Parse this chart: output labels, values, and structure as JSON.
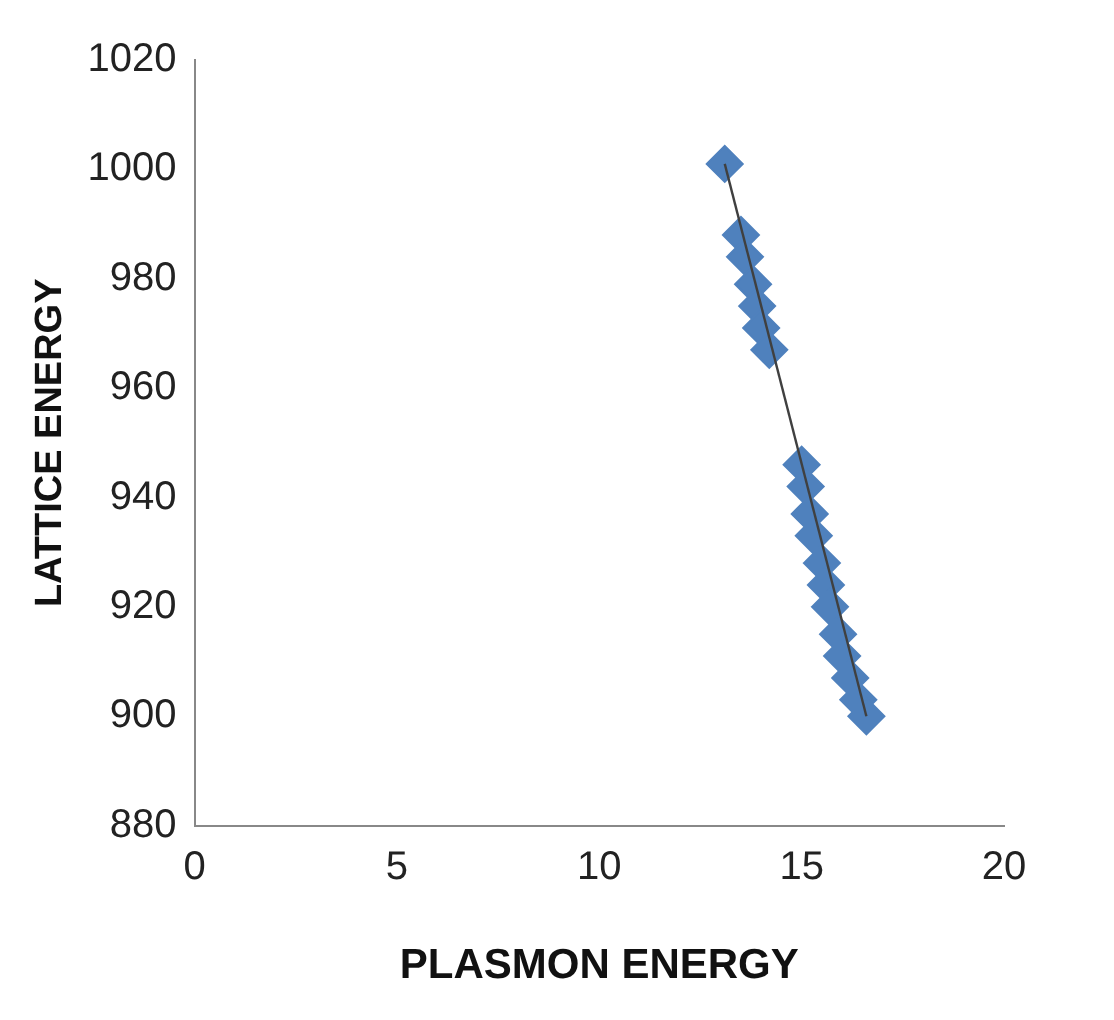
{
  "chart_data": {
    "type": "scatter",
    "xlabel": "PLASMON ENERGY",
    "ylabel": "LATTICE ENERGY",
    "marker": "diamond",
    "grid": false,
    "legend": false,
    "xlim": [
      0,
      20
    ],
    "xticks": [
      0,
      5,
      10,
      15,
      20
    ],
    "ylim": [
      880,
      1020
    ],
    "yticks": [
      880,
      900,
      920,
      940,
      960,
      980,
      1000,
      1020
    ],
    "series": [
      {
        "color": "#4f81bd",
        "x": [
          13.1,
          13.5,
          13.6,
          13.8,
          13.9,
          14.0,
          14.2,
          15.0,
          15.1,
          15.2,
          15.3,
          15.5,
          15.6,
          15.7,
          15.9,
          16.0,
          16.2,
          16.4,
          16.6
        ],
        "values": [
          1001,
          988,
          984,
          979,
          975,
          971,
          967,
          946,
          942,
          937,
          933,
          928,
          924,
          920,
          915,
          911,
          907,
          903,
          900
        ]
      },
      {
        "type": "line",
        "color": "#404040",
        "marker": "none",
        "x": [
          13.1,
          16.6
        ],
        "values": [
          1001,
          900
        ]
      }
    ]
  }
}
